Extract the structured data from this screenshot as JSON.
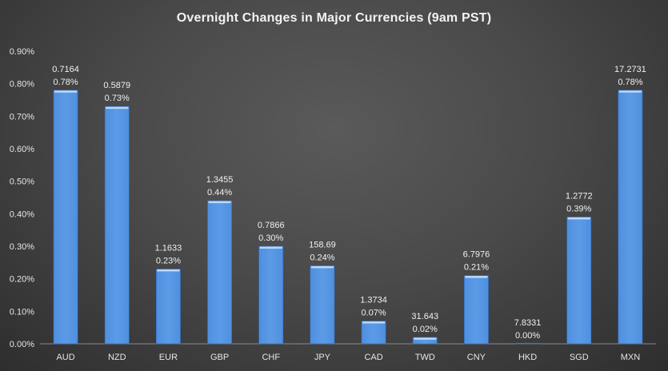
{
  "chart_data": {
    "type": "bar",
    "title": "Overnight Changes in Major Currencies (9am PST)",
    "categories": [
      "AUD",
      "NZD",
      "EUR",
      "GBP",
      "CHF",
      "JPY",
      "CAD",
      "TWD",
      "CNY",
      "HKD",
      "SGD",
      "MXN"
    ],
    "values": [
      0.78,
      0.73,
      0.23,
      0.44,
      0.3,
      0.24,
      0.07,
      0.02,
      0.21,
      0.0,
      0.39,
      0.78
    ],
    "value_labels": [
      "0.78%",
      "0.73%",
      "0.23%",
      "0.44%",
      "0.30%",
      "0.24%",
      "0.07%",
      "0.02%",
      "0.21%",
      "0.00%",
      "0.39%",
      "0.78%"
    ],
    "rate_labels": [
      "0.7164",
      "0.5879",
      "1.1633",
      "1.3455",
      "0.7866",
      "158.69",
      "1.3734",
      "31.643",
      "6.7976",
      "7.8331",
      "1.2772",
      "17.2731"
    ],
    "ylim": [
      0,
      0.9
    ],
    "yticks": [
      0,
      0.1,
      0.2,
      0.3,
      0.4,
      0.5,
      0.6,
      0.7,
      0.8,
      0.9
    ],
    "ytick_labels": [
      "0.00%",
      "0.10%",
      "0.20%",
      "0.30%",
      "0.40%",
      "0.50%",
      "0.60%",
      "0.70%",
      "0.80%",
      "0.90%"
    ],
    "xlabel": "",
    "ylabel": "",
    "grid": false,
    "legend": "none",
    "bar_color": "#5b9be6",
    "bar_edge_color": "#2f6fc0",
    "axis_color": "#8a8a8a"
  }
}
